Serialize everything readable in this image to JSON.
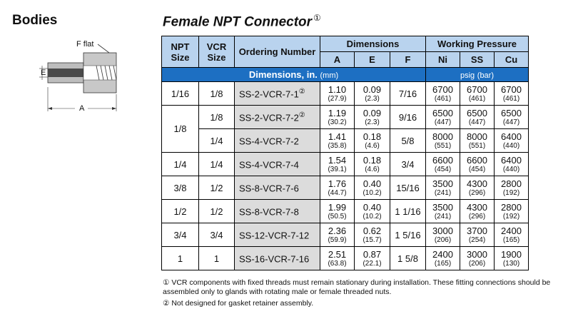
{
  "section_title": "Bodies",
  "product": {
    "title": "Female NPT Connector",
    "title_mark": "①"
  },
  "diagram": {
    "f_label": "F flat",
    "e_label": "E",
    "a_label": "A"
  },
  "table": {
    "headers": {
      "npt": "NPT Size",
      "vcr": "VCR Size",
      "ordering": "Ordering Number",
      "dimensions": "Dimensions",
      "a": "A",
      "e": "E",
      "f": "F",
      "pressure": "Working Pressure",
      "ni": "Ni",
      "ss": "SS",
      "cu": "Cu"
    },
    "band": {
      "dims_label": "Dimensions, in.",
      "dims_unit": "(mm)",
      "psig": "psig",
      "psig_unit": "(bar)"
    },
    "rows": [
      {
        "npt": "1/16",
        "vcr": "1/8",
        "order": "SS-2-VCR-7-1",
        "note": "②",
        "a": "1.10",
        "a_mm": "(27.9)",
        "e": "0.09",
        "e_mm": "(2.3)",
        "f": "7/16",
        "ni": "6700",
        "ni_bar": "(461)",
        "ss": "6700",
        "ss_bar": "(461)",
        "cu": "6700",
        "cu_bar": "(461)"
      },
      {
        "npt": "1/8",
        "vcr": "1/8",
        "order": "SS-2-VCR-7-2",
        "note": "②",
        "a": "1.19",
        "a_mm": "(30.2)",
        "e": "0.09",
        "e_mm": "(2.3)",
        "f": "9/16",
        "ni": "6500",
        "ni_bar": "(447)",
        "ss": "6500",
        "ss_bar": "(447)",
        "cu": "6500",
        "cu_bar": "(447)"
      },
      {
        "npt": "",
        "vcr": "1/4",
        "order": "SS-4-VCR-7-2",
        "note": "",
        "a": "1.41",
        "a_mm": "(35.8)",
        "e": "0.18",
        "e_mm": "(4.6)",
        "f": "5/8",
        "ni": "8000",
        "ni_bar": "(551)",
        "ss": "8000",
        "ss_bar": "(551)",
        "cu": "6400",
        "cu_bar": "(440)"
      },
      {
        "npt": "1/4",
        "vcr": "1/4",
        "order": "SS-4-VCR-7-4",
        "note": "",
        "a": "1.54",
        "a_mm": "(39.1)",
        "e": "0.18",
        "e_mm": "(4.6)",
        "f": "3/4",
        "ni": "6600",
        "ni_bar": "(454)",
        "ss": "6600",
        "ss_bar": "(454)",
        "cu": "6400",
        "cu_bar": "(440)"
      },
      {
        "npt": "3/8",
        "vcr": "1/2",
        "order": "SS-8-VCR-7-6",
        "note": "",
        "a": "1.76",
        "a_mm": "(44.7)",
        "e": "0.40",
        "e_mm": "(10.2)",
        "f": "15/16",
        "ni": "3500",
        "ni_bar": "(241)",
        "ss": "4300",
        "ss_bar": "(296)",
        "cu": "2800",
        "cu_bar": "(192)"
      },
      {
        "npt": "1/2",
        "vcr": "1/2",
        "order": "SS-8-VCR-7-8",
        "note": "",
        "a": "1.99",
        "a_mm": "(50.5)",
        "e": "0.40",
        "e_mm": "(10.2)",
        "f": "1 1/16",
        "ni": "3500",
        "ni_bar": "(241)",
        "ss": "4300",
        "ss_bar": "(296)",
        "cu": "2800",
        "cu_bar": "(192)"
      },
      {
        "npt": "3/4",
        "vcr": "3/4",
        "order": "SS-12-VCR-7-12",
        "note": "",
        "a": "2.36",
        "a_mm": "(59.9)",
        "e": "0.62",
        "e_mm": "(15.7)",
        "f": "1 5/16",
        "ni": "3000",
        "ni_bar": "(206)",
        "ss": "3700",
        "ss_bar": "(254)",
        "cu": "2400",
        "cu_bar": "(165)"
      },
      {
        "npt": "1",
        "vcr": "1",
        "order": "SS-16-VCR-7-16",
        "note": "",
        "a": "2.51",
        "a_mm": "(63.8)",
        "e": "0.87",
        "e_mm": "(22.1)",
        "f": "1 5/8",
        "ni": "2400",
        "ni_bar": "(165)",
        "ss": "3000",
        "ss_bar": "(206)",
        "cu": "1900",
        "cu_bar": "(130)"
      }
    ]
  },
  "footnotes": {
    "note1_mark": "①",
    "note1": "VCR components with fixed threads must remain stationary during installation. These fitting connections should be assembled only to glands with rotating male or female threaded nuts.",
    "note2_mark": "②",
    "note2": "Not designed for gasket retainer assembly."
  }
}
